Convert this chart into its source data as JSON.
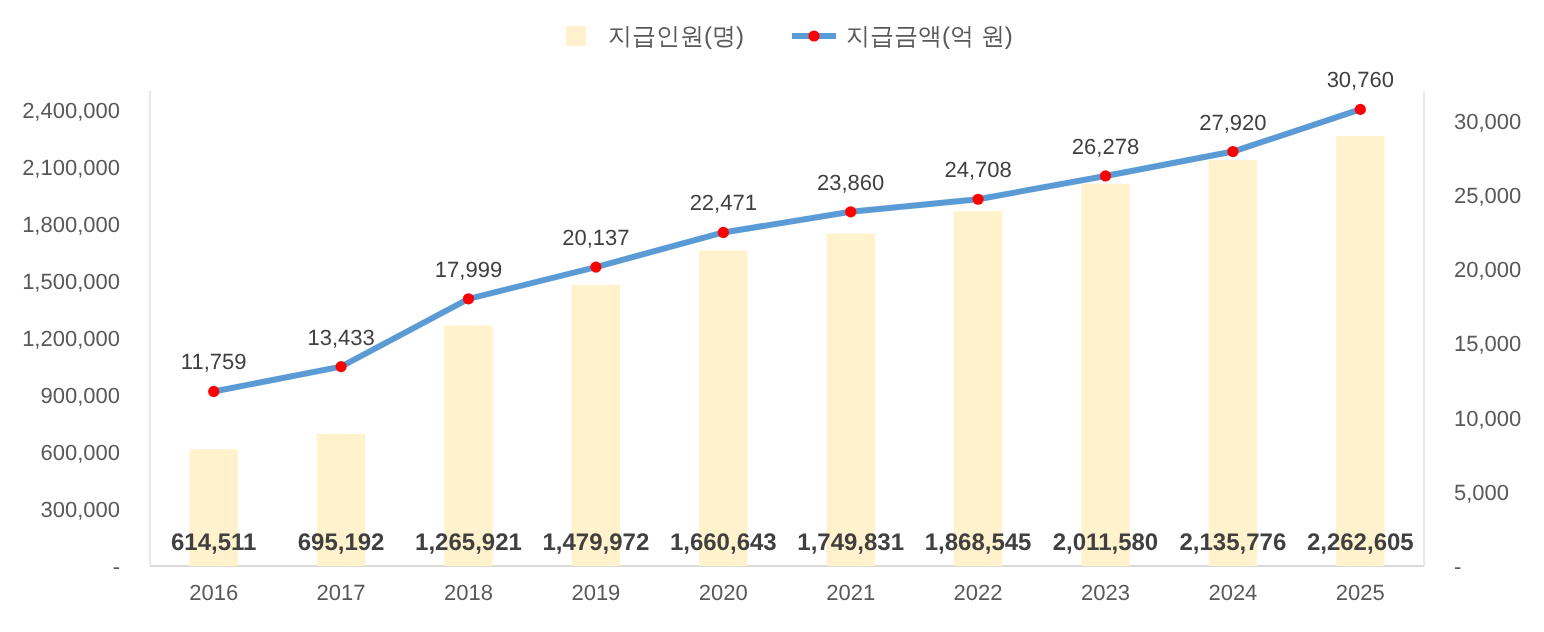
{
  "chart_data": {
    "type": "bar",
    "categories": [
      "2016",
      "2017",
      "2018",
      "2019",
      "2020",
      "2021",
      "2022",
      "2023",
      "2024",
      "2025"
    ],
    "series": [
      {
        "name": "지급인원(명)",
        "color": "#fff2cc",
        "values": [
          614511,
          695192,
          1265921,
          1479972,
          1660643,
          1749831,
          1868545,
          2011580,
          2135776,
          2262605
        ],
        "value_labels": [
          "614,511",
          "695,192",
          "1,265,921",
          "1,479,972",
          "1,660,643",
          "1,749,831",
          "1,868,545",
          "2,011,580",
          "2,135,776",
          "2,262,605"
        ]
      },
      {
        "name": "지급금액(억 원)",
        "type": "line",
        "axis": "y2",
        "color": "#5b9bd5",
        "colors": [
          "#ff0000",
          "#ff0000",
          "#ff0000",
          "#ff0000",
          "#ff0000",
          "#ff0000",
          "#ff0000",
          "#ff0000",
          "#ff0000",
          "#ff0000"
        ],
        "values": [
          11759,
          13433,
          17999,
          20137,
          22471,
          23860,
          24708,
          26278,
          27920,
          30760
        ],
        "value_labels": [
          "11,759",
          "13,433",
          "17,999",
          "20,137",
          "22,471",
          "23,860",
          "24,708",
          "26,278",
          "27,920",
          "30,760"
        ]
      }
    ],
    "ylim": [
      0,
      2500000
    ],
    "yticks": [
      {
        "value": 0,
        "label": "-"
      },
      {
        "value": 300000,
        "label": "300,000"
      },
      {
        "value": 600000,
        "label": "600,000"
      },
      {
        "value": 900000,
        "label": "900,000"
      },
      {
        "value": 1200000,
        "label": "1,200,000"
      },
      {
        "value": 1500000,
        "label": "1,500,000"
      },
      {
        "value": 1800000,
        "label": "1,800,000"
      },
      {
        "value": 2100000,
        "label": "2,100,000"
      },
      {
        "value": 2400000,
        "label": "2,400,000"
      }
    ],
    "y2lim": [
      0,
      32000
    ],
    "y2ticks": [
      {
        "value": 0,
        "label": "-"
      },
      {
        "value": 5000,
        "label": "5,000"
      },
      {
        "value": 10000,
        "label": "10,000"
      },
      {
        "value": 15000,
        "label": "15,000"
      },
      {
        "value": 20000,
        "label": "20,000"
      },
      {
        "value": 25000,
        "label": "25,000"
      },
      {
        "value": 30000,
        "label": "30,000"
      }
    ],
    "legend": "top",
    "grid": false,
    "marker": "circle",
    "line_style": "solid"
  }
}
